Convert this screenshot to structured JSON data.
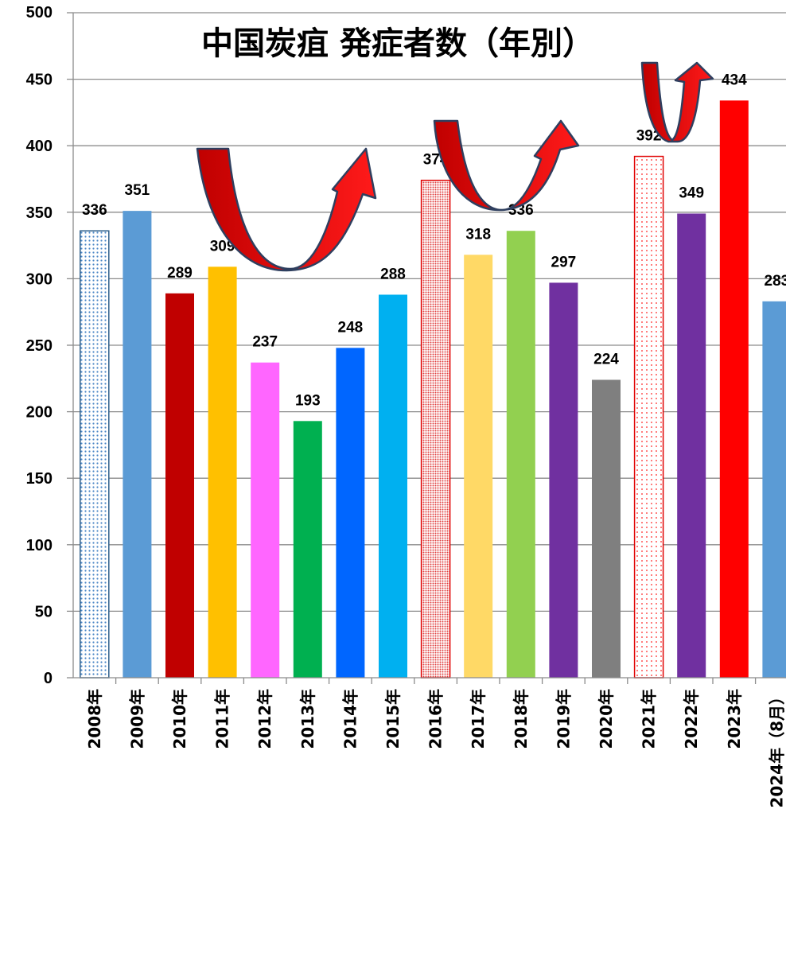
{
  "chart_data": {
    "type": "bar",
    "title": "中国炭疽 発症者数（年別）",
    "categories": [
      "2008年",
      "2009年",
      "2010年",
      "2011年",
      "2012年",
      "2013年",
      "2014年",
      "2015年",
      "2016年",
      "2017年",
      "2018年",
      "2019年",
      "2020年",
      "2021年",
      "2022年",
      "2023年",
      "2024年（8月）"
    ],
    "values": [
      336,
      351,
      289,
      309,
      237,
      193,
      248,
      288,
      374,
      318,
      336,
      297,
      224,
      392,
      349,
      434,
      283
    ],
    "colors": [
      "#dce9f5",
      "#5b9bd5",
      "#c00000",
      "#ffc000",
      "#ff66ff",
      "#00b050",
      "#0066ff",
      "#00b0f0",
      "#f5c0c0",
      "#ffd966",
      "#92d050",
      "#7030a0",
      "#7f7f7f",
      "#fce4e4",
      "#7030a0",
      "#ff0000",
      "#5b9bd5"
    ],
    "patterns": [
      "dots-blue",
      "",
      "",
      "",
      "",
      "",
      "",
      "",
      "dense-red",
      "",
      "",
      "",
      "",
      "dots-red",
      "",
      "",
      ""
    ],
    "ylim": [
      0,
      500
    ],
    "yticks": [
      0,
      50,
      100,
      150,
      200,
      250,
      300,
      350,
      400,
      450,
      500
    ],
    "grid": true,
    "xlabel": "",
    "ylabel": ""
  }
}
